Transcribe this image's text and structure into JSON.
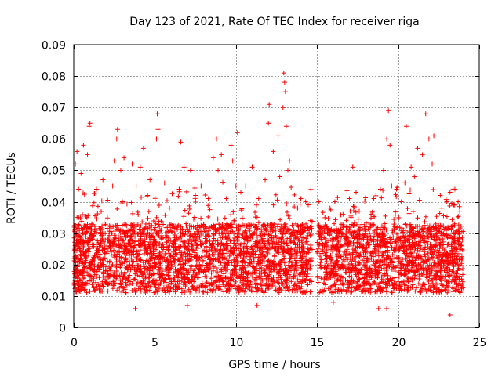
{
  "chart_data": {
    "type": "scatter",
    "title": "Day 123 of 2021, Rate Of TEC Index for receiver riga",
    "xlabel": "GPS time / hours",
    "ylabel": "ROTI / TECUs",
    "xlim": [
      0,
      25
    ],
    "ylim": [
      0,
      0.09
    ],
    "xticks": [
      0,
      5,
      10,
      15,
      20,
      25
    ],
    "yticks": [
      0,
      0.01,
      0.02,
      0.03,
      0.04,
      0.05,
      0.06,
      0.07,
      0.08,
      0.09
    ],
    "xtick_labels": [
      "0",
      "5",
      "10",
      "15",
      "20",
      "25"
    ],
    "ytick_labels": [
      "0",
      "0.01",
      "0.02",
      "0.03",
      "0.04",
      "0.05",
      "0.06",
      "0.07",
      "0.08",
      "0.09"
    ],
    "grid": true,
    "marker": "+",
    "marker_color": "#ff0000",
    "data_gap_hours": [
      14.7,
      15.0
    ],
    "series": [
      {
        "name": "riga",
        "summary": "Dense cloud of ROTI samples spanning 0-24 h (gap ~14.7-15.0 h); bulk between 0.01 and 0.03 TECU, spikes to 0.081 near 13 h",
        "points": [
          [
            0.1,
            0.052
          ],
          [
            0.2,
            0.056
          ],
          [
            0.3,
            0.044
          ],
          [
            0.45,
            0.049
          ],
          [
            0.6,
            0.058
          ],
          [
            0.85,
            0.055
          ],
          [
            0.95,
            0.064
          ],
          [
            1.0,
            0.065
          ],
          [
            1.4,
            0.044
          ],
          [
            1.8,
            0.047
          ],
          [
            2.4,
            0.045
          ],
          [
            2.5,
            0.053
          ],
          [
            2.65,
            0.06
          ],
          [
            2.7,
            0.063
          ],
          [
            2.9,
            0.05
          ],
          [
            3.0,
            0.04
          ],
          [
            3.1,
            0.054
          ],
          [
            3.6,
            0.052
          ],
          [
            3.85,
            0.045
          ],
          [
            4.1,
            0.051
          ],
          [
            4.3,
            0.057
          ],
          [
            4.55,
            0.042
          ],
          [
            4.7,
            0.047
          ],
          [
            5.1,
            0.06
          ],
          [
            5.15,
            0.068
          ],
          [
            5.2,
            0.063
          ],
          [
            5.6,
            0.046
          ],
          [
            5.9,
            0.038
          ],
          [
            6.5,
            0.044
          ],
          [
            6.6,
            0.059
          ],
          [
            6.8,
            0.051
          ],
          [
            7.2,
            0.05
          ],
          [
            7.5,
            0.042
          ],
          [
            7.85,
            0.045
          ],
          [
            8.3,
            0.041
          ],
          [
            8.6,
            0.054
          ],
          [
            8.8,
            0.06
          ],
          [
            8.9,
            0.05
          ],
          [
            9.1,
            0.055
          ],
          [
            9.4,
            0.041
          ],
          [
            9.7,
            0.058
          ],
          [
            9.8,
            0.053
          ],
          [
            10.0,
            0.045
          ],
          [
            10.1,
            0.062
          ],
          [
            10.3,
            0.043
          ],
          [
            10.6,
            0.045
          ],
          [
            11.0,
            0.051
          ],
          [
            11.4,
            0.041
          ],
          [
            11.8,
            0.047
          ],
          [
            12.0,
            0.065
          ],
          [
            12.05,
            0.071
          ],
          [
            12.3,
            0.056
          ],
          [
            12.6,
            0.061
          ],
          [
            12.7,
            0.048
          ],
          [
            12.9,
            0.07
          ],
          [
            12.95,
            0.081
          ],
          [
            13.0,
            0.078
          ],
          [
            13.05,
            0.075
          ],
          [
            13.1,
            0.064
          ],
          [
            13.2,
            0.05
          ],
          [
            13.3,
            0.053
          ],
          [
            13.8,
            0.038
          ],
          [
            14.0,
            0.041
          ],
          [
            14.3,
            0.04
          ],
          [
            14.6,
            0.034
          ],
          [
            15.1,
            0.04
          ],
          [
            15.3,
            0.032
          ],
          [
            15.8,
            0.038
          ],
          [
            16.1,
            0.04
          ],
          [
            16.6,
            0.036
          ],
          [
            17.0,
            0.041
          ],
          [
            17.1,
            0.035
          ],
          [
            17.2,
            0.051
          ],
          [
            17.6,
            0.037
          ],
          [
            18.0,
            0.032
          ],
          [
            18.5,
            0.041
          ],
          [
            18.9,
            0.044
          ],
          [
            19.1,
            0.05
          ],
          [
            19.3,
            0.06
          ],
          [
            19.4,
            0.069
          ],
          [
            19.5,
            0.058
          ],
          [
            19.6,
            0.045
          ],
          [
            19.9,
            0.044
          ],
          [
            20.2,
            0.04
          ],
          [
            20.5,
            0.064
          ],
          [
            20.8,
            0.051
          ],
          [
            21.0,
            0.048
          ],
          [
            21.2,
            0.057
          ],
          [
            21.5,
            0.055
          ],
          [
            21.7,
            0.068
          ],
          [
            21.9,
            0.06
          ],
          [
            22.1,
            0.052
          ],
          [
            22.2,
            0.061
          ],
          [
            22.6,
            0.042
          ],
          [
            23.0,
            0.04
          ],
          [
            23.2,
            0.043
          ],
          [
            23.5,
            0.044
          ],
          [
            23.7,
            0.04
          ],
          [
            23.8,
            0.037
          ],
          [
            23.2,
            0.004
          ],
          [
            19.3,
            0.006
          ],
          [
            18.8,
            0.006
          ],
          [
            3.8,
            0.006
          ],
          [
            7.0,
            0.007
          ],
          [
            11.3,
            0.007
          ],
          [
            16.0,
            0.008
          ]
        ]
      }
    ]
  }
}
